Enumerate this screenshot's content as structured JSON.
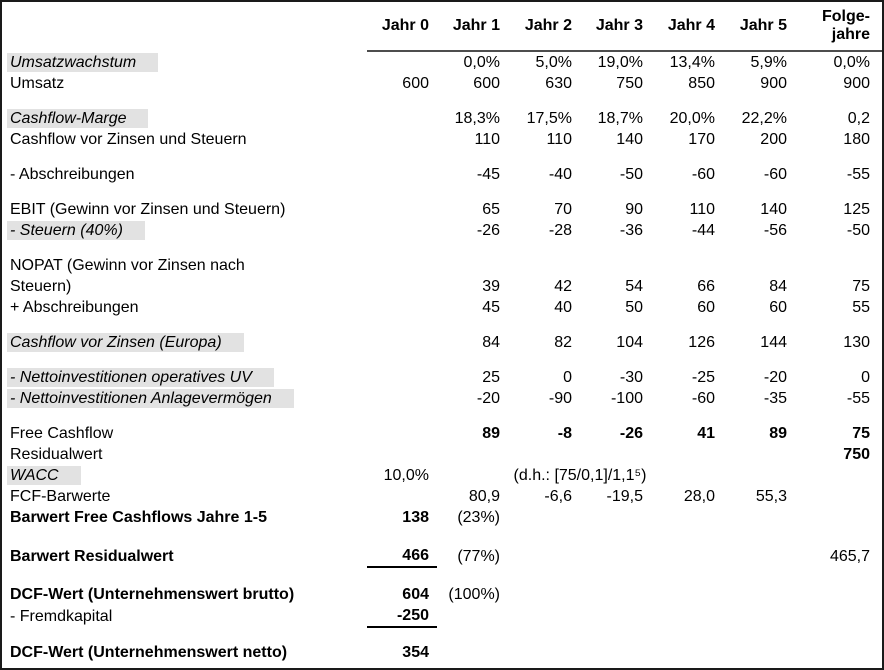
{
  "meta": {
    "description": "DCF-Bewertung Tabelle (Discounted-Cashflow-Unternehmensbewertung)",
    "colors": {
      "background": "#ffffff",
      "border": "#1a1a1a",
      "highlight_bg": "#e2e2e2",
      "header_underline": "#4d4d4d",
      "sum_underline": "#000000",
      "text": "#000000"
    }
  },
  "table": {
    "columns": [
      "",
      "Jahr 0",
      "Jahr 1",
      "Jahr 2",
      "Jahr 3",
      "Jahr 4",
      "Jahr 5",
      "Folge-\njahre"
    ],
    "rows": [
      {
        "label": "Umsatzwachstum",
        "label_style": "highlight",
        "values": [
          "",
          "0,0%",
          "5,0%",
          "19,0%",
          "13,4%",
          "5,9%",
          "0,0%"
        ]
      },
      {
        "label": "Umsatz",
        "label_style": "plain",
        "values": [
          "600",
          "600",
          "630",
          "750",
          "850",
          "900",
          "900"
        ]
      },
      {
        "spacer": true
      },
      {
        "label": "Cashflow-Marge",
        "label_style": "highlight",
        "values": [
          "",
          "18,3%",
          "17,5%",
          "18,7%",
          "20,0%",
          "22,2%",
          "0,2"
        ]
      },
      {
        "label": "Cashflow vor Zinsen und Steuern",
        "label_style": "plain",
        "values": [
          "",
          "110",
          "110",
          "140",
          "170",
          "200",
          "180"
        ]
      },
      {
        "spacer": true
      },
      {
        "label": "- Abschreibungen",
        "label_style": "plain",
        "values": [
          "",
          "-45",
          "-40",
          "-50",
          "-60",
          "-60",
          "-55"
        ]
      },
      {
        "spacer": true
      },
      {
        "label": "EBIT (Gewinn vor Zinsen und Steuern)",
        "label_style": "plain",
        "values": [
          "",
          "65",
          "70",
          "90",
          "110",
          "140",
          "125"
        ]
      },
      {
        "label": "- Steuern (40%)",
        "label_style": "highlight",
        "values": [
          "",
          "-26",
          "-28",
          "-36",
          "-44",
          "-56",
          "-50"
        ]
      },
      {
        "spacer": true
      },
      {
        "label": "NOPAT (Gewinn vor Zinsen nach",
        "label_style": "plain",
        "values": [
          "",
          "",
          "",
          "",
          "",
          "",
          ""
        ]
      },
      {
        "label": "Steuern)",
        "label_style": "plain",
        "values": [
          "",
          "39",
          "42",
          "54",
          "66",
          "84",
          "75"
        ]
      },
      {
        "label": "+ Abschreibungen",
        "label_style": "plain",
        "values": [
          "",
          "45",
          "40",
          "50",
          "60",
          "60",
          "55"
        ]
      },
      {
        "spacer": true
      },
      {
        "label": "Cashflow vor Zinsen (Europa)",
        "label_style": "highlight",
        "values": [
          "",
          "84",
          "82",
          "104",
          "126",
          "144",
          "130"
        ]
      },
      {
        "spacer": true
      },
      {
        "label": "- Nettoinvestitionen operatives UV",
        "label_style": "highlight",
        "values": [
          "",
          "25",
          "0",
          "-30",
          "-25",
          "-20",
          "0"
        ]
      },
      {
        "label": "- Nettoinvestitionen Anlagevermögen",
        "label_style": "highlight",
        "values": [
          "",
          "-20",
          "-90",
          "-100",
          "-60",
          "-35",
          "-55"
        ]
      },
      {
        "spacer": true
      },
      {
        "label": "Free Cashflow",
        "label_style": "plain",
        "bold_values": "all",
        "values": [
          "",
          "89",
          "-8",
          "-26",
          "41",
          "89",
          "75"
        ]
      },
      {
        "label": "Residualwert",
        "label_style": "plain",
        "bold_values": "all",
        "values": [
          "",
          "",
          "",
          "",
          "",
          "",
          "750"
        ]
      },
      {
        "label": "WACC",
        "label_style": "highlight",
        "values": [
          "10,0%",
          "",
          "",
          "",
          "",
          "",
          ""
        ],
        "note": "(d.h.: [75/0,1]/1,1⁵)"
      },
      {
        "label": "FCF-Barwerte",
        "label_style": "plain",
        "values": [
          "",
          "80,9",
          "-6,6",
          "-19,5",
          "28,0",
          "55,3",
          ""
        ]
      },
      {
        "label": "Barwert Free Cashflows Jahre 1-5",
        "label_style": "bold",
        "bold_cols": [
          0
        ],
        "values": [
          "138",
          "(23%)",
          "",
          "",
          "",
          "",
          ""
        ]
      },
      {
        "spacer": true,
        "h": 17
      },
      {
        "label": "Barwert Residualwert",
        "label_style": "bold",
        "bold_cols": [
          0
        ],
        "underline_cols": [
          0
        ],
        "values": [
          "466",
          "(77%)",
          "",
          "",
          "",
          "",
          "465,7"
        ]
      },
      {
        "spacer": true,
        "h": 16
      },
      {
        "label": "DCF-Wert (Unternehmenswert brutto)",
        "label_style": "bold",
        "bold_cols": [
          0
        ],
        "values": [
          "604",
          "(100%)",
          "",
          "",
          "",
          "",
          ""
        ]
      },
      {
        "label": "- Fremdkapital",
        "label_style": "plain",
        "bold_cols": [
          0
        ],
        "underline_cols": [
          0
        ],
        "values": [
          "-250",
          "",
          "",
          "",
          "",
          "",
          ""
        ]
      },
      {
        "spacer": true
      },
      {
        "label": "DCF-Wert (Unternehmenswert netto)",
        "label_style": "bold",
        "bold_cols": [
          0
        ],
        "values": [
          "354",
          "",
          "",
          "",
          "",
          "",
          ""
        ]
      }
    ]
  }
}
